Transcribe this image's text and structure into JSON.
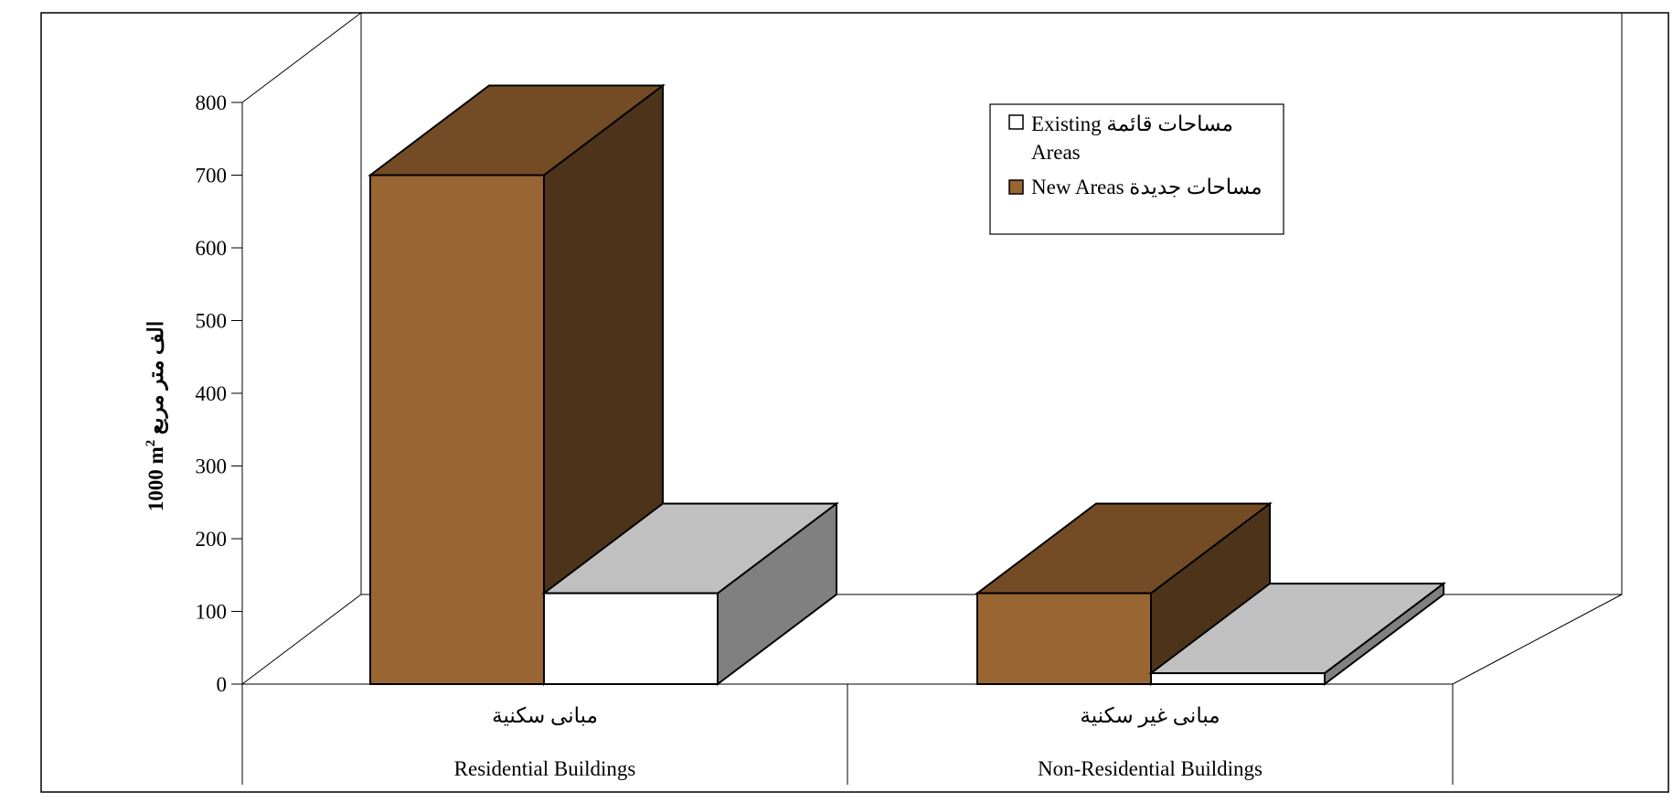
{
  "chart_data": {
    "type": "bar",
    "categories": [
      {
        "ar": "مبانى سكنية",
        "en": "Residential Buildings"
      },
      {
        "ar": "مبانى غير سكنية",
        "en": "Non-Residential Buildings"
      }
    ],
    "series": [
      {
        "name": "New Areas مساحات جديدة",
        "values": [
          700,
          125
        ],
        "color": "#996633"
      },
      {
        "name": "Existing مساحات قائمة Areas",
        "values": [
          125,
          15
        ],
        "color": "#ffffff"
      }
    ],
    "legend": {
      "entries": [
        {
          "line1": "Existing مساحات قائمة",
          "line2": "Areas",
          "color": "#ffffff"
        },
        {
          "line1": "New Areas مساحات جديدة",
          "line2": "",
          "color": "#996633"
        }
      ],
      "placement": "top-right"
    },
    "ylabel": "1000 m",
    "ylabel_sup": "2",
    "ylabel_ar": "الف متر مربع",
    "ylim": [
      0,
      800
    ],
    "yticks": [
      "0",
      "100",
      "200",
      "300",
      "400",
      "500",
      "600",
      "700",
      "800"
    ],
    "grid": false,
    "style": "3d"
  }
}
